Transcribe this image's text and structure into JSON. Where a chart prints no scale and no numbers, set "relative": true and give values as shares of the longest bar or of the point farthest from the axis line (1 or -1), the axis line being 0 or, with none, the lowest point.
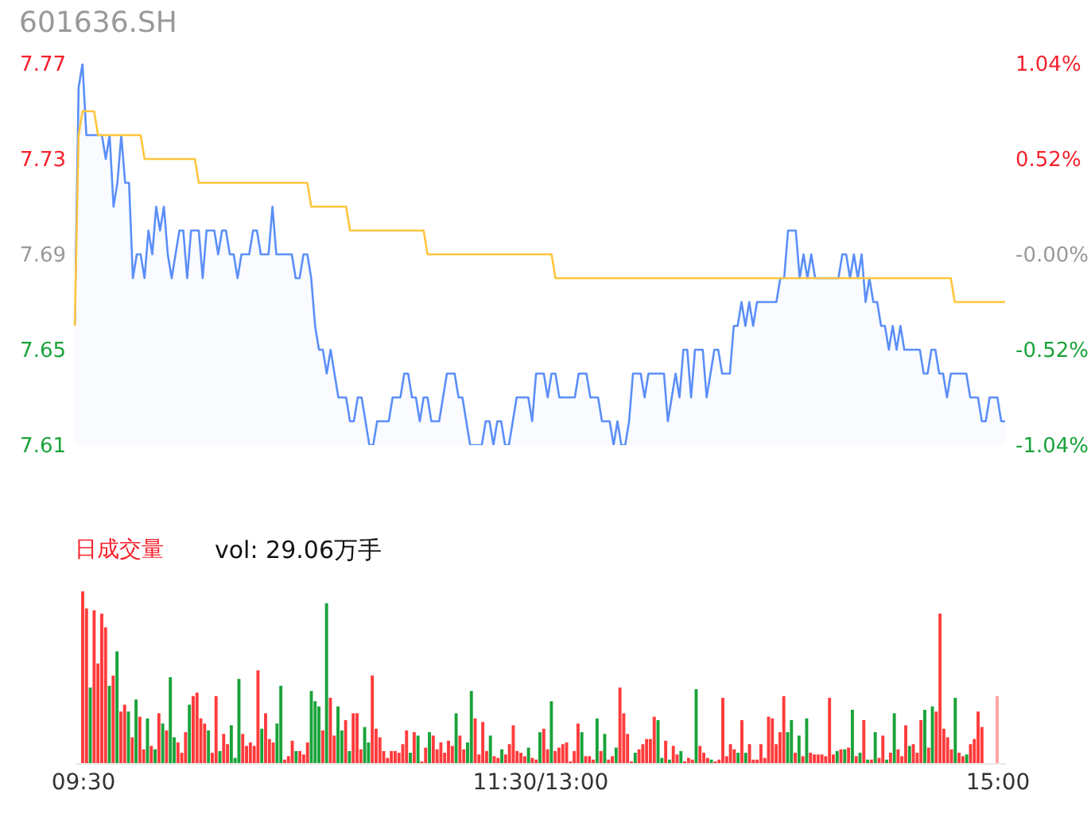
{
  "chart_data": [
    {
      "type": "line",
      "title": "601636.SH",
      "categories": [
        null,
        null,
        null,
        null,
        null,
        null,
        null,
        null,
        null,
        null,
        null,
        null,
        null,
        null,
        null,
        null,
        null,
        null,
        null,
        null,
        null,
        null,
        null,
        null,
        null,
        null,
        null,
        null,
        null,
        null,
        null,
        null,
        null,
        null,
        null,
        null,
        null,
        null,
        null,
        null,
        null,
        null,
        null,
        null,
        null,
        null,
        null,
        null,
        null,
        null,
        null,
        null,
        null,
        null,
        null,
        null,
        null,
        null,
        null,
        null,
        null,
        null,
        null,
        null,
        null,
        null,
        null,
        null,
        null,
        null,
        null,
        null,
        null,
        null,
        null,
        null,
        null,
        null,
        null,
        null,
        null,
        null,
        null,
        null,
        null,
        null,
        null,
        null,
        null,
        null,
        null,
        null,
        null,
        null,
        null,
        null,
        null,
        null,
        null,
        null,
        null,
        null,
        null,
        null,
        null,
        null,
        null,
        null,
        null,
        null,
        null,
        null,
        null,
        null,
        null,
        null,
        null,
        null,
        null,
        null,
        null,
        null,
        null,
        null,
        null,
        null,
        null,
        null,
        null,
        null,
        null,
        null,
        null,
        null,
        null,
        null,
        null,
        null,
        null,
        null,
        null,
        null,
        null,
        null,
        null,
        null,
        null,
        null,
        null,
        null,
        null,
        null,
        null,
        null,
        null,
        null,
        null,
        null,
        null,
        null,
        null,
        null,
        null,
        null,
        null,
        null,
        null,
        null,
        null,
        null,
        null,
        null,
        null,
        null,
        null,
        null,
        null,
        null,
        null,
        null,
        null,
        null,
        null,
        null,
        null,
        null,
        null,
        null,
        null,
        null,
        null,
        null,
        null,
        null,
        null,
        null,
        null,
        null,
        null,
        null,
        null,
        null,
        null,
        null,
        null,
        null,
        null,
        null,
        null,
        null,
        null,
        null,
        null,
        null,
        null,
        null,
        null,
        null,
        null,
        null,
        null,
        null,
        null,
        null,
        null,
        null,
        null,
        null,
        null,
        null,
        null,
        null,
        null,
        null,
        null,
        null,
        null,
        null,
        null,
        null,
        null
      ],
      "ylim": [
        7.61,
        7.77
      ],
      "yticks": [
        7.61,
        7.65,
        7.69,
        7.73,
        7.77
      ],
      "y2lim": [
        -1.04,
        1.04
      ],
      "y2ticks": [
        {
          "value": -1.04,
          "label": "-1.04%"
        },
        {
          "value": -0.52,
          "label": "-0.52%"
        },
        {
          "value": 0,
          "label": "-0.00%"
        },
        {
          "value": 0.52,
          "label": "0.52%"
        },
        {
          "value": 1.04,
          "label": "1.04%"
        }
      ],
      "series": [
        {
          "type": "area",
          "color": "#5b8ff9",
          "values": [
            7.66,
            7.76,
            7.77,
            7.74,
            7.74,
            7.74,
            7.74,
            7.74,
            7.73,
            7.74,
            7.71,
            7.72,
            7.74,
            7.72,
            7.72,
            7.68,
            7.69,
            7.69,
            7.68,
            7.7,
            7.69,
            7.71,
            7.7,
            7.71,
            7.69,
            7.68,
            7.69,
            7.7,
            7.7,
            7.68,
            7.7,
            7.7,
            7.7,
            7.68,
            7.7,
            7.7,
            7.7,
            7.69,
            7.7,
            7.7,
            7.69,
            7.69,
            7.68,
            7.69,
            7.69,
            7.69,
            7.7,
            7.7,
            7.69,
            7.69,
            7.69,
            7.71,
            7.69,
            7.69,
            7.69,
            7.69,
            7.69,
            7.68,
            7.68,
            7.69,
            7.69,
            7.68,
            7.66,
            7.65,
            7.65,
            7.64,
            7.65,
            7.64,
            7.63,
            7.63,
            7.63,
            7.62,
            7.62,
            7.63,
            7.63,
            7.62,
            7.61,
            7.61,
            7.62,
            7.62,
            7.62,
            7.62,
            7.63,
            7.63,
            7.63,
            7.64,
            7.64,
            7.63,
            7.63,
            7.62,
            7.63,
            7.63,
            7.62,
            7.62,
            7.62,
            7.63,
            7.64,
            7.64,
            7.64,
            7.63,
            7.63,
            7.62,
            7.61,
            7.61,
            7.61,
            7.61,
            7.62,
            7.62,
            7.61,
            7.62,
            7.62,
            7.61,
            7.61,
            7.62,
            7.63,
            7.63,
            7.63,
            7.63,
            7.62,
            7.64,
            7.64,
            7.64,
            7.63,
            7.64,
            7.64,
            7.63,
            7.63,
            7.63,
            7.63,
            7.63,
            7.64,
            7.64,
            7.64,
            7.63,
            7.63,
            7.63,
            7.62,
            7.62,
            7.62,
            7.61,
            7.62,
            7.61,
            7.61,
            7.62,
            7.64,
            7.64,
            7.64,
            7.63,
            7.64,
            7.64,
            7.64,
            7.64,
            7.64,
            7.62,
            7.63,
            7.64,
            7.63,
            7.65,
            7.65,
            7.63,
            7.65,
            7.65,
            7.65,
            7.63,
            7.64,
            7.65,
            7.65,
            7.64,
            7.64,
            7.64,
            7.66,
            7.66,
            7.67,
            7.66,
            7.67,
            7.66,
            7.67,
            7.67,
            7.67,
            7.67,
            7.67,
            7.67,
            7.68,
            7.68,
            7.7,
            7.7,
            7.7,
            7.68,
            7.69,
            7.68,
            7.69,
            7.68,
            7.68,
            7.68,
            7.68,
            7.68,
            7.68,
            7.68,
            7.69,
            7.69,
            7.68,
            7.69,
            7.68,
            7.69,
            7.67,
            7.68,
            7.67,
            7.67,
            7.66,
            7.66,
            7.65,
            7.66,
            7.65,
            7.66,
            7.65,
            7.65,
            7.65,
            7.65,
            7.65,
            7.64,
            7.64,
            7.65,
            7.65,
            7.64,
            7.64,
            7.63,
            7.64,
            7.64,
            7.64,
            7.64,
            7.64,
            7.63,
            7.63,
            7.63,
            7.62,
            7.62,
            7.63,
            7.63,
            7.63,
            7.62,
            7.62
          ]
        },
        {
          "type": "line",
          "color": "#ffc53d",
          "values": [
            7.66,
            7.74,
            7.75,
            7.75,
            7.75,
            7.75,
            7.74,
            7.74,
            7.74,
            7.74,
            7.74,
            7.74,
            7.74,
            7.74,
            7.74,
            7.74,
            7.74,
            7.74,
            7.73,
            7.73,
            7.73,
            7.73,
            7.73,
            7.73,
            7.73,
            7.73,
            7.73,
            7.73,
            7.73,
            7.73,
            7.73,
            7.73,
            7.72,
            7.72,
            7.72,
            7.72,
            7.72,
            7.72,
            7.72,
            7.72,
            7.72,
            7.72,
            7.72,
            7.72,
            7.72,
            7.72,
            7.72,
            7.72,
            7.72,
            7.72,
            7.72,
            7.72,
            7.72,
            7.72,
            7.72,
            7.72,
            7.72,
            7.72,
            7.72,
            7.72,
            7.72,
            7.71,
            7.71,
            7.71,
            7.71,
            7.71,
            7.71,
            7.71,
            7.71,
            7.71,
            7.71,
            7.7,
            7.7,
            7.7,
            7.7,
            7.7,
            7.7,
            7.7,
            7.7,
            7.7,
            7.7,
            7.7,
            7.7,
            7.7,
            7.7,
            7.7,
            7.7,
            7.7,
            7.7,
            7.7,
            7.7,
            7.69,
            7.69,
            7.69,
            7.69,
            7.69,
            7.69,
            7.69,
            7.69,
            7.69,
            7.69,
            7.69,
            7.69,
            7.69,
            7.69,
            7.69,
            7.69,
            7.69,
            7.69,
            7.69,
            7.69,
            7.69,
            7.69,
            7.69,
            7.69,
            7.69,
            7.69,
            7.69,
            7.69,
            7.69,
            7.69,
            7.69,
            7.69,
            7.69,
            7.68,
            7.68,
            7.68,
            7.68,
            7.68,
            7.68,
            7.68,
            7.68,
            7.68,
            7.68,
            7.68,
            7.68,
            7.68,
            7.68,
            7.68,
            7.68,
            7.68,
            7.68,
            7.68,
            7.68,
            7.68,
            7.68,
            7.68,
            7.68,
            7.68,
            7.68,
            7.68,
            7.68,
            7.68,
            7.68,
            7.68,
            7.68,
            7.68,
            7.68,
            7.68,
            7.68,
            7.68,
            7.68,
            7.68,
            7.68,
            7.68,
            7.68,
            7.68,
            7.68,
            7.68,
            7.68,
            7.68,
            7.68,
            7.68,
            7.68,
            7.68,
            7.68,
            7.68,
            7.68,
            7.68,
            7.68,
            7.68,
            7.68,
            7.68,
            7.68,
            7.68,
            7.68,
            7.68,
            7.68,
            7.68,
            7.68,
            7.68,
            7.68,
            7.68,
            7.68,
            7.68,
            7.68,
            7.68,
            7.68,
            7.68,
            7.68,
            7.68,
            7.68,
            7.68,
            7.68,
            7.68,
            7.68,
            7.68,
            7.68,
            7.68,
            7.68,
            7.68,
            7.68,
            7.68,
            7.68,
            7.68,
            7.68,
            7.68,
            7.68,
            7.68,
            7.68,
            7.68,
            7.68,
            7.68,
            7.68,
            7.68,
            7.68,
            7.68,
            7.67,
            7.67,
            7.67,
            7.67,
            7.67,
            7.67,
            7.67,
            7.67,
            7.67,
            7.67,
            7.67,
            7.67,
            7.67,
            7.67
          ]
        }
      ]
    },
    {
      "type": "bar",
      "relative": true,
      "categories": [
        "09:30",
        null,
        null,
        null,
        null,
        null,
        null,
        null,
        null,
        null,
        null,
        null,
        null,
        null,
        null,
        null,
        null,
        null,
        null,
        null,
        null,
        null,
        null,
        null,
        null,
        null,
        null,
        null,
        null,
        null,
        null,
        null,
        null,
        null,
        null,
        null,
        null,
        null,
        null,
        null,
        null,
        null,
        null,
        null,
        null,
        null,
        null,
        null,
        null,
        null,
        null,
        null,
        null,
        null,
        null,
        null,
        null,
        null,
        null,
        null,
        null,
        null,
        null,
        null,
        null,
        null,
        null,
        null,
        null,
        null,
        null,
        null,
        null,
        null,
        null,
        null,
        null,
        null,
        null,
        null,
        null,
        null,
        null,
        null,
        null,
        null,
        null,
        null,
        null,
        null,
        null,
        null,
        null,
        null,
        null,
        null,
        null,
        null,
        null,
        null,
        null,
        null,
        null,
        null,
        null,
        null,
        null,
        null,
        null,
        null,
        null,
        null,
        null,
        null,
        null,
        null,
        null,
        null,
        null,
        null,
        "11:30/13:00",
        null,
        null,
        null,
        null,
        null,
        null,
        null,
        null,
        null,
        null,
        null,
        null,
        null,
        null,
        null,
        null,
        null,
        null,
        null,
        null,
        null,
        null,
        null,
        null,
        null,
        null,
        null,
        null,
        null,
        null,
        null,
        null,
        null,
        null,
        null,
        null,
        null,
        null,
        null,
        null,
        null,
        null,
        null,
        null,
        null,
        null,
        null,
        null,
        null,
        null,
        null,
        null,
        null,
        null,
        null,
        null,
        null,
        null,
        null,
        null,
        null,
        null,
        null,
        null,
        null,
        null,
        null,
        null,
        null,
        null,
        null,
        null,
        null,
        null,
        null,
        null,
        null,
        null,
        null,
        null,
        null,
        null,
        null,
        null,
        null,
        null,
        null,
        null,
        null,
        null,
        null,
        null,
        null,
        null,
        null,
        null,
        null,
        null,
        null,
        null,
        null,
        null,
        null,
        null,
        null,
        null,
        null,
        null,
        null,
        null,
        null,
        null,
        null,
        null,
        null,
        null,
        null,
        null,
        null,
        "15:00"
      ],
      "annotations": [
        "日成交量",
        "vol: 29.06万手"
      ],
      "values": [
        1.0,
        0.9,
        0.44,
        0.89,
        0.58,
        0.87,
        0.79,
        0.45,
        0.51,
        0.65,
        0.3,
        0.34,
        0.3,
        0.15,
        0.37,
        0.27,
        0.08,
        0.26,
        0.1,
        0.08,
        0.29,
        0.23,
        0.19,
        0.5,
        0.15,
        0.12,
        0.06,
        0.18,
        0.34,
        0.39,
        0.41,
        0.26,
        0.23,
        0.19,
        0.06,
        0.39,
        0.07,
        0.17,
        0.11,
        0.22,
        0.03,
        0.49,
        0.17,
        0.1,
        0.12,
        0.1,
        0.54,
        0.2,
        0.29,
        0.14,
        0.12,
        0.23,
        0.45,
        0.02,
        0.04,
        0.13,
        0.07,
        0.07,
        0.05,
        0.12,
        0.42,
        0.36,
        0.33,
        0.19,
        0.93,
        0.38,
        0.16,
        0.33,
        0.19,
        0.25,
        0.07,
        0.29,
        0.29,
        0.08,
        0.21,
        0.12,
        0.51,
        0.2,
        0.15,
        0.07,
        0.03,
        0.07,
        0.07,
        0.06,
        0.11,
        0.19,
        0.06,
        0.18,
        0.16,
        0.01,
        0.09,
        0.18,
        0.16,
        0.08,
        0.12,
        0.06,
        0.13,
        0.1,
        0.29,
        0.16,
        0.08,
        0.12,
        0.42,
        0.26,
        0.05,
        0.24,
        0.07,
        0.16,
        0.04,
        0.03,
        0.08,
        0.05,
        0.11,
        0.22,
        0.07,
        0.06,
        0.04,
        0.09,
        0.03,
        0.02,
        0.18,
        0.2,
        0.08,
        0.36,
        0.07,
        0.09,
        0.11,
        0.12,
        0.01,
        0.07,
        0.23,
        0.18,
        0.04,
        0.04,
        0.02,
        0.26,
        0.07,
        0.17,
        0.02,
        0.04,
        0.09,
        0.44,
        0.29,
        0.17,
        0.01,
        0.06,
        0.08,
        0.11,
        0.14,
        0.14,
        0.27,
        0.25,
        0.03,
        0.13,
        0.02,
        0.1,
        0.05,
        0.07,
        0.01,
        0.03,
        0.02,
        0.43,
        0.1,
        0.06,
        0.03,
        0.02,
        0.01,
        0.02,
        0.38,
        0.04,
        0.11,
        0.08,
        0.06,
        0.25,
        0.06,
        0.11,
        0.02,
        0.02,
        0.11,
        0.03,
        0.27,
        0.26,
        0.11,
        0.18,
        0.39,
        0.18,
        0.25,
        0.06,
        0.16,
        0.04,
        0.26,
        0.06,
        0.05,
        0.05,
        0.05,
        0.04,
        0.38,
        0.05,
        0.07,
        0.08,
        0.08,
        0.09,
        0.31,
        0.04,
        0.06,
        0.25,
        0.02,
        0.02,
        0.18,
        0.03,
        0.16,
        0.02,
        0.06,
        0.29,
        0.08,
        0.04,
        0.22,
        0.1,
        0.11,
        0.06,
        0.25,
        0.31,
        0.09,
        0.33,
        0.3,
        0.87,
        0.2,
        0.15,
        0.08,
        0.38,
        0.06,
        0.04,
        0.05,
        0.11,
        0.14,
        0.3,
        0.21,
        null,
        null,
        null,
        0.39
      ],
      "colors": [
        "#ff3b3b",
        "#ff3b3b",
        "#1aa33a",
        "#ff3b3b",
        "#ff3b3b",
        "#ff3b3b",
        "#ff3b3b",
        "#1aa33a",
        "#ff3b3b",
        "#1aa33a",
        "#ff3b3b",
        "#ff3b3b",
        "#1aa33a",
        "#ff3b3b",
        "#1aa33a",
        "#ff3b3b",
        "#ff3b3b",
        "#1aa33a",
        "#ff3b3b",
        "#1aa33a",
        "#ff3b3b",
        "#1aa33a",
        "#ff3b3b",
        "#1aa33a",
        "#1aa33a",
        "#ff3b3b",
        "#ff3b3b",
        "#ff3b3b",
        "#1aa33a",
        "#ff3b3b",
        "#ff3b3b",
        "#ff3b3b",
        "#ff3b3b",
        "#1aa33a",
        "#ff3b3b",
        "#ff3b3b",
        "#1aa33a",
        "#ff3b3b",
        "#ff3b3b",
        "#1aa33a",
        "#1aa33a",
        "#1aa33a",
        "#ff3b3b",
        "#ff3b3b",
        "#ff3b3b",
        "#ff3b3b",
        "#ff3b3b",
        "#1aa33a",
        "#ff3b3b",
        "#ff3b3b",
        "#ff3b3b",
        "#1aa33a",
        "#1aa33a",
        "#ff3b3b",
        "#ff3b3b",
        "#ff3b3b",
        "#1aa33a",
        "#ff3b3b",
        "#ff3b3b",
        "#ff3b3b",
        "#1aa33a",
        "#1aa33a",
        "#1aa33a",
        "#ff3b3b",
        "#1aa33a",
        "#ff3b3b",
        "#ff3b3b",
        "#1aa33a",
        "#1aa33a",
        "#ff3b3b",
        "#1aa33a",
        "#ff3b3b",
        "#ff3b3b",
        "#ff3b3b",
        "#1aa33a",
        "#1aa33a",
        "#ff3b3b",
        "#ff3b3b",
        "#ff3b3b",
        "#ff3b3b",
        "#ff3b3b",
        "#ff3b3b",
        "#ff3b3b",
        "#ff3b3b",
        "#ff3b3b",
        "#ff3b3b",
        "#1aa33a",
        "#ff3b3b",
        "#1aa33a",
        "#ff3b3b",
        "#ff3b3b",
        "#1aa33a",
        "#ff3b3b",
        "#ff3b3b",
        "#ff3b3b",
        "#ff3b3b",
        "#ff3b3b",
        "#ff3b3b",
        "#1aa33a",
        "#ff3b3b",
        "#ff3b3b",
        "#1aa33a",
        "#1aa33a",
        "#ff3b3b",
        "#ff3b3b",
        "#ff3b3b",
        "#ff3b3b",
        "#1aa33a",
        "#ff3b3b",
        "#ff3b3b",
        "#1aa33a",
        "#ff3b3b",
        "#ff3b3b",
        "#ff3b3b",
        "#ff3b3b",
        "#ff3b3b",
        "#ff3b3b",
        "#1aa33a",
        "#ff3b3b",
        "#ff3b3b",
        "#1aa33a",
        "#ff3b3b",
        "#ff3b3b",
        "#1aa33a",
        "#ff3b3b",
        "#ff3b3b",
        "#ff3b3b",
        "#ff3b3b",
        "#ff3b3b",
        "#ff3b3b",
        "#ff3b3b",
        "#1aa33a",
        "#ff3b3b",
        "#ff3b3b",
        "#ff3b3b",
        "#1aa33a",
        "#ff3b3b",
        "#1aa33a",
        "#ff3b3b",
        "#ff3b3b",
        "#1aa33a",
        "#ff3b3b",
        "#ff3b3b",
        "#ff3b3b",
        "#ff3b3b",
        "#1aa33a",
        "#ff3b3b",
        "#ff3b3b",
        "#ff3b3b",
        "#ff3b3b",
        "#ff3b3b",
        "#1aa33a",
        "#1aa33a",
        "#ff3b3b",
        "#1aa33a",
        "#ff3b3b",
        "#ff3b3b",
        "#1aa33a",
        "#ff3b3b",
        "#ff3b3b",
        "#ff3b3b",
        "#1aa33a",
        "#ff3b3b",
        "#ff3b3b",
        "#ff3b3b",
        "#1aa33a",
        "#ff3b3b",
        "#ff3b3b",
        "#ff3b3b",
        "#ff3b3b",
        "#ff3b3b",
        "#ff3b3b",
        "#1aa33a",
        "#ff3b3b",
        "#1aa33a",
        "#ff3b3b",
        "#ff3b3b",
        "#ff3b3b",
        "#ff3b3b",
        "#ff3b3b",
        "#ff3b3b",
        "#ff3b3b",
        "#ff3b3b",
        "#ff3b3b",
        "#ff3b3b",
        "#1aa33a",
        "#1aa33a",
        "#ff3b3b",
        "#1aa33a",
        "#ff3b3b",
        "#1aa33a",
        "#ff3b3b",
        "#ff3b3b",
        "#ff3b3b",
        "#ff3b3b",
        "#ff3b3b",
        "#ff3b3b",
        "#ff3b3b",
        "#1aa33a",
        "#ff3b3b",
        "#1aa33a",
        "#ff3b3b",
        "#1aa33a",
        "#ff3b3b",
        "#1aa33a",
        "#ff3b3b",
        "#1aa33a",
        "#ff3b3b",
        "#1aa33a",
        "#ff3b3b",
        "#ff3b3b",
        "#1aa33a",
        "#ff3b3b",
        "#1aa33a",
        "#ff3b3b",
        "#ff3b3b",
        "#ff3b3b",
        "#1aa33a",
        "#ff3b3b",
        "#ff3b3b",
        "#ff3b3b",
        "#1aa33a",
        "#ff3b3b",
        "#1aa33a",
        "#ff3b3b",
        "#ff3b3b",
        "#ff3b3b",
        "#ff3b3b",
        "#ff3b3b",
        "#1aa33a",
        "#ff3b3b",
        "#ff3b3b",
        "#1aa33a",
        "#ff3b3b",
        "#ff3b3b",
        "#ff3b3b",
        "#ff3b3b",
        null,
        null,
        null,
        "#ffa3a3"
      ]
    }
  ]
}
